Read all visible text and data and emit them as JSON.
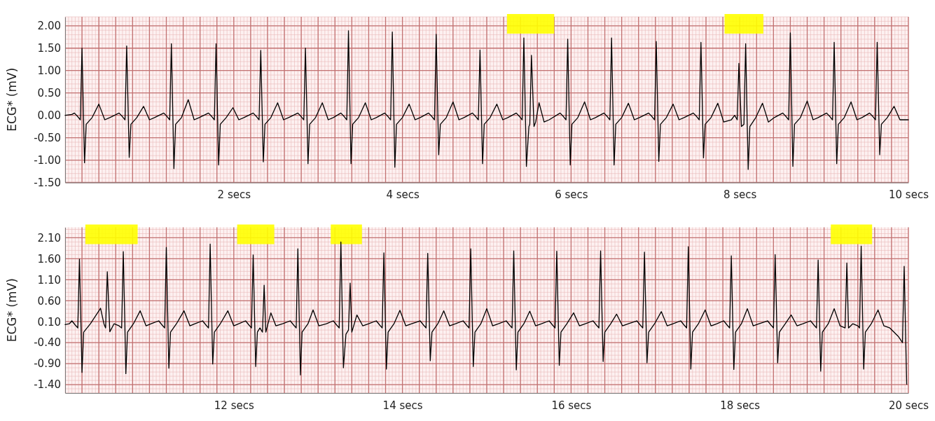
{
  "chart_data": [
    {
      "type": "line",
      "ylabel": "ECG* (mV)",
      "xlim": [
        0,
        10
      ],
      "ylim": [
        -1.5,
        2.2
      ],
      "grid": true,
      "yticks": [
        {
          "value": 2,
          "label": "2.00"
        },
        {
          "value": 1.5,
          "label": "1.50"
        },
        {
          "value": 1,
          "label": "1.00"
        },
        {
          "value": 0.5,
          "label": "0.50"
        },
        {
          "value": 0,
          "label": "0.00"
        },
        {
          "value": -0.5,
          "label": "-0.50"
        },
        {
          "value": -1,
          "label": "-1.00"
        },
        {
          "value": -1.5,
          "label": "-1.50"
        }
      ],
      "xticks": [
        {
          "value": 0.2,
          "label": null
        },
        {
          "value": 0.4,
          "label": null
        },
        {
          "value": 0.6,
          "label": null
        },
        {
          "value": 0.8,
          "label": null
        },
        {
          "value": 1,
          "label": null
        },
        {
          "value": 1.2,
          "label": null
        },
        {
          "value": 1.4,
          "label": null
        },
        {
          "value": 1.6,
          "label": null
        },
        {
          "value": 1.8,
          "label": null
        },
        {
          "value": 2,
          "label": "2 secs"
        },
        {
          "value": 2.2,
          "label": null
        },
        {
          "value": 2.4,
          "label": null
        },
        {
          "value": 2.6,
          "label": null
        },
        {
          "value": 2.8,
          "label": null
        },
        {
          "value": 3,
          "label": null
        },
        {
          "value": 3.2,
          "label": null
        },
        {
          "value": 3.4,
          "label": null
        },
        {
          "value": 3.6,
          "label": null
        },
        {
          "value": 3.8,
          "label": null
        },
        {
          "value": 4,
          "label": "4 secs"
        },
        {
          "value": 4.2,
          "label": null
        },
        {
          "value": 4.4,
          "label": null
        },
        {
          "value": 4.6,
          "label": null
        },
        {
          "value": 4.8,
          "label": null
        },
        {
          "value": 5,
          "label": null
        },
        {
          "value": 5.2,
          "label": null
        },
        {
          "value": 5.4,
          "label": null
        },
        {
          "value": 5.6,
          "label": null
        },
        {
          "value": 5.8,
          "label": null
        },
        {
          "value": 6,
          "label": "6 secs"
        },
        {
          "value": 6.2,
          "label": null
        },
        {
          "value": 6.4,
          "label": null
        },
        {
          "value": 6.6,
          "label": null
        },
        {
          "value": 6.8,
          "label": null
        },
        {
          "value": 7,
          "label": null
        },
        {
          "value": 7.2,
          "label": null
        },
        {
          "value": 7.4,
          "label": null
        },
        {
          "value": 7.6,
          "label": null
        },
        {
          "value": 7.8,
          "label": null
        },
        {
          "value": 8,
          "label": "8 secs"
        },
        {
          "value": 8.2,
          "label": null
        },
        {
          "value": 8.4,
          "label": null
        },
        {
          "value": 8.6,
          "label": null
        },
        {
          "value": 8.8,
          "label": null
        },
        {
          "value": 9,
          "label": null
        },
        {
          "value": 9.2,
          "label": null
        },
        {
          "value": 9.4,
          "label": null
        },
        {
          "value": 9.6,
          "label": null
        },
        {
          "value": 9.8,
          "label": null
        },
        {
          "value": 10,
          "label": "10 secs"
        }
      ],
      "bands": [
        {
          "axis": "x",
          "from": 5.24,
          "to": 5.8,
          "color": "#ffff00"
        },
        {
          "axis": "x",
          "from": 7.82,
          "to": 8.28,
          "color": "#ffff00"
        }
      ],
      "series": [
        {
          "color": "#000000",
          "x": [
            0,
            0.08,
            0.11,
            0.15,
            0.18,
            0.2,
            0.23,
            0.25,
            0.32,
            0.4,
            0.47,
            0.53,
            0.64,
            0.68,
            0.71,
            0.73,
            0.76,
            0.78,
            0.85,
            0.93,
            1,
            1.06,
            1.17,
            1.21,
            1.24,
            1.26,
            1.29,
            1.31,
            1.38,
            1.46,
            1.53,
            1.59,
            1.7,
            1.74,
            1.77,
            1.79,
            1.82,
            1.84,
            1.91,
            1.99,
            2.06,
            2.12,
            2.23,
            2.27,
            2.3,
            2.32,
            2.35,
            2.37,
            2.44,
            2.52,
            2.59,
            2.65,
            2.76,
            2.8,
            2.83,
            2.85,
            2.88,
            2.9,
            2.97,
            3.05,
            3.12,
            3.18,
            3.27,
            3.31,
            3.34,
            3.36,
            3.39,
            3.41,
            3.48,
            3.56,
            3.63,
            3.69,
            3.79,
            3.83,
            3.86,
            3.88,
            3.91,
            3.93,
            4,
            4.08,
            4.15,
            4.21,
            4.31,
            4.35,
            4.38,
            4.4,
            4.43,
            4.45,
            4.52,
            4.6,
            4.67,
            4.73,
            4.83,
            4.87,
            4.9,
            4.92,
            4.95,
            4.97,
            5.04,
            5.12,
            5.19,
            5.25,
            5.35,
            5.39,
            5.42,
            5.44,
            5.47,
            5.5,
            5.51,
            5.53,
            5.56,
            5.58,
            5.62,
            5.68,
            5.74,
            5.87,
            5.91,
            5.94,
            5.96,
            5.99,
            6.01,
            6.08,
            6.16,
            6.23,
            6.29,
            6.39,
            6.43,
            6.46,
            6.48,
            6.51,
            6.53,
            6.6,
            6.68,
            6.75,
            6.81,
            6.92,
            6.96,
            6.99,
            7.01,
            7.04,
            7.06,
            7.13,
            7.21,
            7.28,
            7.34,
            7.45,
            7.49,
            7.52,
            7.54,
            7.57,
            7.59,
            7.66,
            7.74,
            7.81,
            7.9,
            7.94,
            7.97,
            7.99,
            8.02,
            8.05,
            8.07,
            8.1,
            8.12,
            8.19,
            8.27,
            8.34,
            8.41,
            8.51,
            8.55,
            8.58,
            8.6,
            8.63,
            8.65,
            8.72,
            8.8,
            8.87,
            8.93,
            9.03,
            9.07,
            9.1,
            9.12,
            9.15,
            9.17,
            9.24,
            9.32,
            9.39,
            9.45,
            9.54,
            9.58,
            9.61,
            9.63,
            9.66,
            9.68,
            9.75,
            9.83,
            9.9,
            10
          ],
          "values": [
            0,
            0.02,
            0.05,
            -0.03,
            -0.1,
            1.5,
            -1.06,
            -0.2,
            -0.05,
            0.25,
            -0.1,
            -0.05,
            0.05,
            -0.03,
            -0.1,
            1.55,
            -0.94,
            -0.2,
            -0.05,
            0.2,
            -0.1,
            -0.05,
            0.05,
            -0.03,
            -0.1,
            1.6,
            -1.19,
            -0.2,
            -0.05,
            0.35,
            -0.1,
            -0.05,
            0.05,
            -0.03,
            -0.1,
            1.6,
            -1.11,
            -0.2,
            -0.05,
            0.17,
            -0.1,
            -0.05,
            0.05,
            -0.03,
            -0.1,
            1.45,
            -1.04,
            -0.2,
            -0.05,
            0.28,
            -0.1,
            -0.05,
            0.05,
            -0.03,
            -0.1,
            1.5,
            -1.08,
            -0.2,
            -0.05,
            0.28,
            -0.1,
            -0.05,
            0.05,
            -0.03,
            -0.1,
            1.89,
            -1.08,
            -0.2,
            -0.05,
            0.28,
            -0.1,
            -0.05,
            0.05,
            -0.03,
            -0.1,
            1.86,
            -1.16,
            -0.2,
            -0.05,
            0.25,
            -0.1,
            -0.05,
            0.05,
            -0.03,
            -0.1,
            1.81,
            -0.88,
            -0.2,
            -0.05,
            0.3,
            -0.1,
            -0.05,
            0.05,
            -0.03,
            -0.1,
            1.46,
            -1.08,
            -0.2,
            -0.05,
            0.25,
            -0.1,
            -0.05,
            0.05,
            -0.03,
            -0.1,
            1.73,
            -1.14,
            -0.25,
            -0.2,
            1.34,
            -0.25,
            -0.15,
            0.28,
            -0.15,
            -0.1,
            0.05,
            -0.03,
            -0.1,
            1.7,
            -1.11,
            -0.2,
            -0.05,
            0.3,
            -0.1,
            -0.05,
            0.05,
            -0.03,
            -0.1,
            1.73,
            -1.11,
            -0.2,
            -0.05,
            0.27,
            -0.1,
            -0.05,
            0.05,
            -0.03,
            -0.1,
            1.65,
            -1.03,
            -0.2,
            -0.05,
            0.25,
            -0.1,
            -0.05,
            0.05,
            -0.03,
            -0.1,
            1.63,
            -0.95,
            -0.2,
            -0.05,
            0.27,
            -0.15,
            -0.1,
            0,
            -0.1,
            1.16,
            -0.25,
            -0.2,
            1.6,
            -1.21,
            -0.25,
            -0.05,
            0.27,
            -0.15,
            -0.05,
            0.05,
            -0.03,
            -0.1,
            1.84,
            -1.14,
            -0.2,
            -0.05,
            0.32,
            -0.1,
            -0.05,
            0.05,
            -0.03,
            -0.1,
            1.63,
            -1.08,
            -0.2,
            -0.05,
            0.3,
            -0.1,
            -0.05,
            0.05,
            -0.03,
            -0.1,
            1.63,
            -0.88,
            -0.2,
            -0.05,
            0.2,
            -0.1,
            -0.1
          ]
        }
      ]
    },
    {
      "type": "line",
      "ylabel": "ECG* (mV)",
      "xlim": [
        10,
        20
      ],
      "ylim": [
        -1.6,
        2.35
      ],
      "grid": true,
      "yticks": [
        {
          "value": 2.1,
          "label": "2.10"
        },
        {
          "value": 1.6,
          "label": "1.60"
        },
        {
          "value": 1.1,
          "label": "1.10"
        },
        {
          "value": 0.6,
          "label": "0.60"
        },
        {
          "value": 0.1,
          "label": "0.10"
        },
        {
          "value": -0.4,
          "label": "-0.40"
        },
        {
          "value": -0.9,
          "label": "-0.90"
        },
        {
          "value": -1.4,
          "label": "-1.40"
        }
      ],
      "xticks": [
        {
          "value": 10.2,
          "label": null
        },
        {
          "value": 10.4,
          "label": null
        },
        {
          "value": 10.6,
          "label": null
        },
        {
          "value": 10.8,
          "label": null
        },
        {
          "value": 11,
          "label": null
        },
        {
          "value": 11.2,
          "label": null
        },
        {
          "value": 11.4,
          "label": null
        },
        {
          "value": 11.6,
          "label": null
        },
        {
          "value": 11.8,
          "label": null
        },
        {
          "value": 12,
          "label": "12 secs"
        },
        {
          "value": 12.2,
          "label": null
        },
        {
          "value": 12.4,
          "label": null
        },
        {
          "value": 12.6,
          "label": null
        },
        {
          "value": 12.8,
          "label": null
        },
        {
          "value": 13,
          "label": null
        },
        {
          "value": 13.2,
          "label": null
        },
        {
          "value": 13.4,
          "label": null
        },
        {
          "value": 13.6,
          "label": null
        },
        {
          "value": 13.8,
          "label": null
        },
        {
          "value": 14,
          "label": "14 secs"
        },
        {
          "value": 14.2,
          "label": null
        },
        {
          "value": 14.4,
          "label": null
        },
        {
          "value": 14.6,
          "label": null
        },
        {
          "value": 14.8,
          "label": null
        },
        {
          "value": 15,
          "label": null
        },
        {
          "value": 15.2,
          "label": null
        },
        {
          "value": 15.4,
          "label": null
        },
        {
          "value": 15.6,
          "label": null
        },
        {
          "value": 15.8,
          "label": null
        },
        {
          "value": 16,
          "label": "16 secs"
        },
        {
          "value": 16.2,
          "label": null
        },
        {
          "value": 16.4,
          "label": null
        },
        {
          "value": 16.6,
          "label": null
        },
        {
          "value": 16.8,
          "label": null
        },
        {
          "value": 17,
          "label": null
        },
        {
          "value": 17.2,
          "label": null
        },
        {
          "value": 17.4,
          "label": null
        },
        {
          "value": 17.6,
          "label": null
        },
        {
          "value": 17.8,
          "label": null
        },
        {
          "value": 18,
          "label": "18 secs"
        },
        {
          "value": 18.2,
          "label": null
        },
        {
          "value": 18.4,
          "label": null
        },
        {
          "value": 18.6,
          "label": null
        },
        {
          "value": 18.8,
          "label": null
        },
        {
          "value": 19,
          "label": null
        },
        {
          "value": 19.2,
          "label": null
        },
        {
          "value": 19.4,
          "label": null
        },
        {
          "value": 19.6,
          "label": null
        },
        {
          "value": 19.8,
          "label": null
        },
        {
          "value": 20,
          "label": "20 secs"
        }
      ],
      "bands": [
        {
          "axis": "x",
          "from": 10.24,
          "to": 10.86,
          "color": "#ffff00"
        },
        {
          "axis": "x",
          "from": 12.04,
          "to": 12.48,
          "color": "#ffff00"
        },
        {
          "axis": "x",
          "from": 13.15,
          "to": 13.52,
          "color": "#ffff00"
        },
        {
          "axis": "x",
          "from": 19.08,
          "to": 19.57,
          "color": "#ffff00"
        }
      ],
      "series": [
        {
          "color": "#000000",
          "x": [
            10,
            10.05,
            10.08,
            10.12,
            10.15,
            10.17,
            10.2,
            10.22,
            10.3,
            10.42,
            10.46,
            10.48,
            10.5,
            10.53,
            10.58,
            10.64,
            10.67,
            10.69,
            10.72,
            10.74,
            10.81,
            10.89,
            10.96,
            11.02,
            11.11,
            11.15,
            11.18,
            11.2,
            11.23,
            11.25,
            11.32,
            11.41,
            11.48,
            11.54,
            11.63,
            11.67,
            11.7,
            11.72,
            11.75,
            11.77,
            11.84,
            11.93,
            12,
            12.06,
            12.14,
            12.18,
            12.21,
            12.23,
            12.26,
            12.28,
            12.31,
            12.34,
            12.36,
            12.38,
            12.44,
            12.5,
            12.58,
            12.67,
            12.71,
            12.74,
            12.76,
            12.79,
            12.81,
            12.88,
            12.94,
            13.01,
            13.1,
            13.18,
            13.22,
            13.25,
            13.27,
            13.3,
            13.33,
            13.36,
            13.38,
            13.4,
            13.46,
            13.53,
            13.6,
            13.69,
            13.73,
            13.76,
            13.78,
            13.81,
            13.83,
            13.9,
            13.97,
            14.04,
            14.11,
            14.21,
            14.25,
            14.28,
            14.3,
            14.33,
            14.35,
            14.42,
            14.49,
            14.56,
            14.63,
            14.72,
            14.76,
            14.79,
            14.81,
            14.84,
            14.86,
            14.93,
            15,
            15.07,
            15.14,
            15.23,
            15.27,
            15.3,
            15.32,
            15.35,
            15.37,
            15.44,
            15.51,
            15.58,
            15.65,
            15.74,
            15.78,
            15.81,
            15.83,
            15.86,
            15.88,
            15.95,
            16.03,
            16.1,
            16.17,
            16.26,
            16.3,
            16.33,
            16.35,
            16.38,
            16.4,
            16.47,
            16.54,
            16.61,
            16.68,
            16.78,
            16.82,
            16.85,
            16.87,
            16.9,
            16.92,
            16.99,
            17.07,
            17.14,
            17.21,
            17.3,
            17.34,
            17.37,
            17.39,
            17.42,
            17.44,
            17.51,
            17.59,
            17.66,
            17.73,
            17.81,
            17.85,
            17.88,
            17.9,
            17.93,
            17.95,
            18.02,
            18.09,
            18.16,
            18.23,
            18.33,
            18.37,
            18.4,
            18.42,
            18.45,
            18.47,
            18.54,
            18.61,
            18.68,
            18.75,
            18.84,
            18.88,
            18.91,
            18.93,
            18.96,
            18.98,
            19.05,
            19.12,
            19.19,
            19.25,
            19.27,
            19.29,
            19.34,
            19.4,
            19.42,
            19.44,
            19.47,
            19.49,
            19.56,
            19.64,
            19.71,
            19.78,
            19.88,
            19.93,
            19.95,
            19.98
          ],
          "values": [
            0.03,
            0.05,
            0.12,
            0.02,
            -0.05,
            1.59,
            -1.11,
            -0.15,
            0.05,
            0.42,
            0.05,
            -0.05,
            1.29,
            -0.14,
            0.05,
            0,
            -0.05,
            1.77,
            -1.14,
            -0.15,
            0.05,
            0.36,
            0,
            0.05,
            0.12,
            0.02,
            -0.05,
            1.87,
            -1.01,
            -0.15,
            0.05,
            0.36,
            0,
            0.05,
            0.12,
            0.02,
            -0.05,
            1.95,
            -0.91,
            -0.15,
            0.05,
            0.36,
            0,
            0.05,
            0.12,
            0.02,
            -0.05,
            1.69,
            -0.97,
            -0.15,
            -0.05,
            -0.15,
            0.97,
            -0.15,
            0.31,
            0,
            0.05,
            0.12,
            0.02,
            -0.05,
            1.84,
            -1.17,
            -0.15,
            0.05,
            0.38,
            0,
            0.05,
            0.12,
            0.02,
            -0.05,
            2,
            -1,
            -0.2,
            -0.1,
            1.02,
            -0.15,
            0.26,
            0,
            0.05,
            0.12,
            0.02,
            -0.05,
            1.74,
            -1.03,
            -0.15,
            0.05,
            0.37,
            0,
            0.05,
            0.12,
            0.02,
            -0.05,
            1.73,
            -0.83,
            -0.15,
            0.05,
            0.36,
            0,
            0.05,
            0.12,
            0.02,
            -0.05,
            1.84,
            -0.97,
            -0.15,
            0.05,
            0.41,
            0,
            0.05,
            0.12,
            0.02,
            -0.05,
            1.79,
            -1.05,
            -0.15,
            0.05,
            0.35,
            0,
            0.05,
            0.12,
            0.02,
            -0.05,
            1.78,
            -0.94,
            -0.15,
            0.05,
            0.31,
            0,
            0.05,
            0.12,
            0.02,
            -0.05,
            1.79,
            -0.85,
            -0.15,
            0.05,
            0.28,
            0,
            0.05,
            0.12,
            0.02,
            -0.05,
            1.76,
            -0.88,
            -0.15,
            0.05,
            0.34,
            0,
            0.05,
            0.12,
            0.02,
            -0.05,
            1.89,
            -1.03,
            -0.15,
            0.05,
            0.38,
            0,
            0.05,
            0.12,
            0.02,
            -0.05,
            1.67,
            -1.04,
            -0.15,
            0.05,
            0.41,
            0,
            0.05,
            0.12,
            0.02,
            -0.05,
            1.7,
            -0.88,
            -0.15,
            0.05,
            0.26,
            0,
            0.05,
            0.12,
            0.02,
            -0.05,
            1.57,
            -1.08,
            -0.15,
            0.05,
            0.41,
            0,
            -0.05,
            1.5,
            -0.05,
            0.05,
            0,
            -0.05,
            1.9,
            -1.03,
            -0.15,
            0.05,
            0.38,
            0,
            -0.05,
            -0.25,
            -0.4,
            1.42,
            -1.39
          ]
        }
      ]
    }
  ]
}
